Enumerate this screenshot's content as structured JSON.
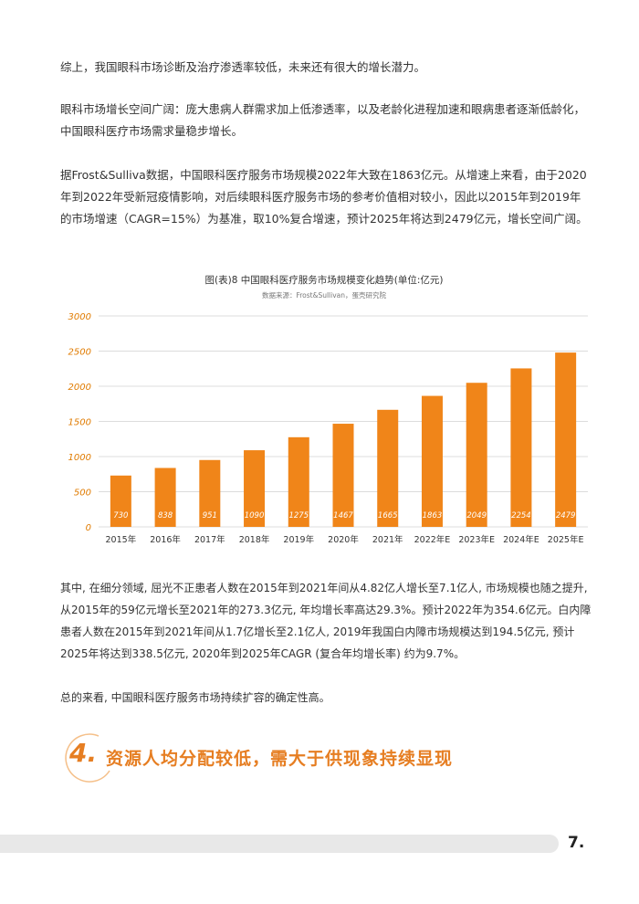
{
  "paragraphs": {
    "p1": "综上，我国眼科市场诊断及治疗渗透率较低，未来还有很大的增长潜力。",
    "p2": "眼科市场增长空间广阔：庞大患病人群需求加上低渗透率，以及老龄化进程加速和眼病患者逐渐低龄化，中国眼科医疗市场需求量稳步增长。",
    "p3": "据Frost&Sulliva数据，中国眼科医疗服务市场规模2022年大致在1863亿元。从增速上来看，由于2020年到2022年受新冠疫情影响，对后续眼科医疗服务市场的参考价值相对较小，因此以2015年到2019年的市场增速（CAGR=15%）为基准，取10%复合增速，预计2025年将达到2479亿元，增长空间广阔。",
    "p4": "其中, 在细分领域, 屈光不正患者人数在2015年到2021年间从4.82亿人增长至7.1亿人, 市场规模也随之提升, 从2015年的59亿元增长至2021年的273.3亿元, 年均增长率高达29.3%。预计2022年为354.6亿元。白内障患者人数在2015年到2021年间从1.7亿增长至2.1亿人, 2019年我国白内障市场规模达到194.5亿元, 预计2025年将达到338.5亿元, 2020年到2025年CAGR (复合年均增长率) 约为9.7%。",
    "p5": "总的来看, 中国眼科医疗服务市场持续扩容的确定性高。"
  },
  "section": {
    "number": "4.",
    "title": "资源人均分配较低，需大于供现象持续显现"
  },
  "page_number": "7.",
  "chart_data": {
    "type": "bar",
    "title": "图(表)8 中国眼科医疗服务市场规模变化趋势(单位:亿元)",
    "subtitle": "数据来源：Frost&Sullivan，蛋壳研究院",
    "categories": [
      "2015年",
      "2016年",
      "2017年",
      "2018年",
      "2019年",
      "2020年",
      "2021年",
      "2022年E",
      "2023年E",
      "2024年E",
      "2025年E"
    ],
    "values": [
      730,
      838,
      951,
      1090,
      1275,
      1467,
      1665,
      1863,
      2049,
      2254,
      2479
    ],
    "ylim": [
      0,
      3000
    ],
    "yticks": [
      0,
      500,
      1000,
      1500,
      2000,
      2500,
      3000
    ],
    "grid": true,
    "bar_color": "#f08519",
    "tick_color": "#e07b00"
  }
}
